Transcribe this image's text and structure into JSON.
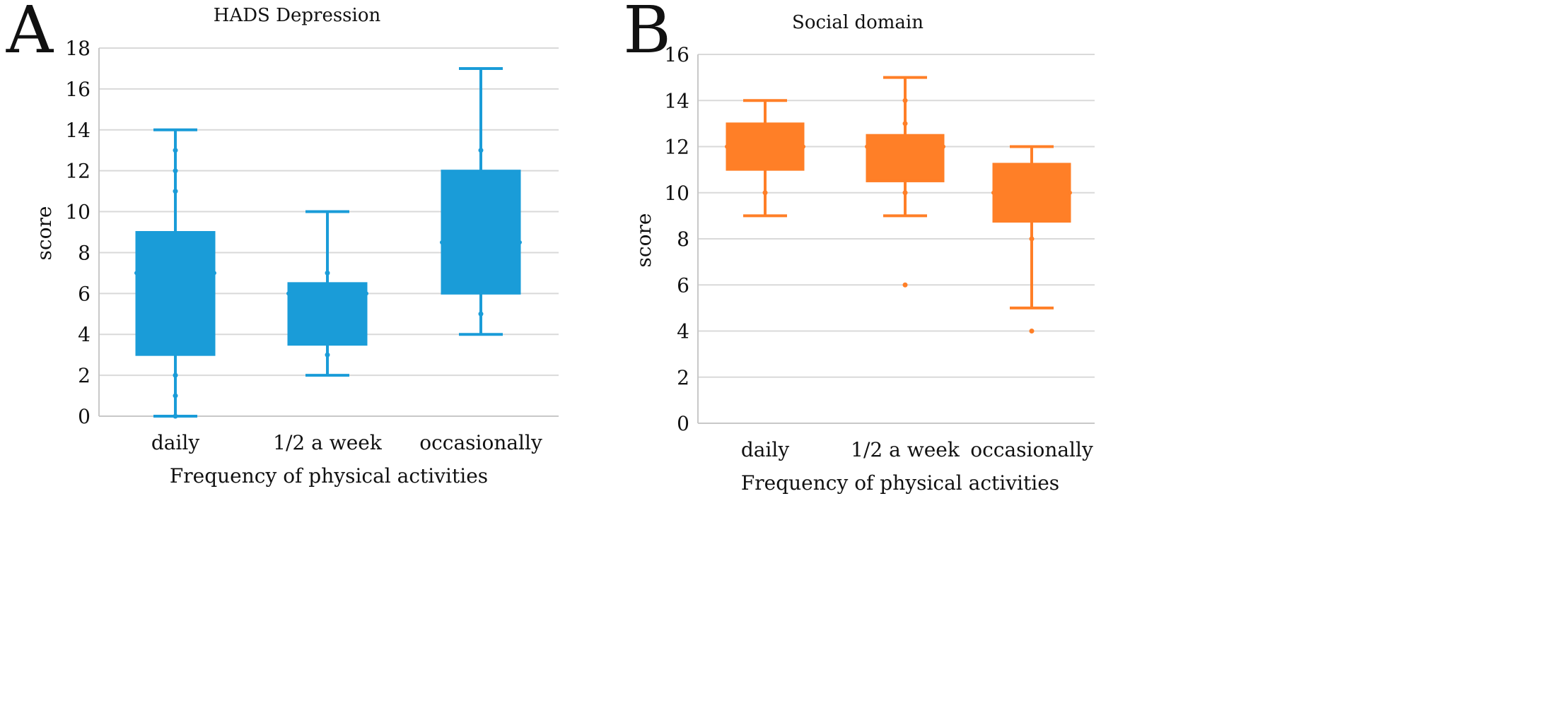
{
  "chart_data": [
    {
      "panel_label": "A",
      "type": "box",
      "title": "HADS Depression",
      "xlabel": "Frequency of physical activities",
      "ylabel": "score",
      "ylim": [
        0,
        18
      ],
      "yticks": [
        0,
        2,
        4,
        6,
        8,
        10,
        12,
        14,
        16,
        18
      ],
      "grid": true,
      "color": "#1a9cd8",
      "categories": [
        "daily",
        "1/2 a week",
        "occasionally"
      ],
      "boxes": [
        {
          "min": 0,
          "q1": 3,
          "median": 7,
          "q3": 9,
          "max": 14,
          "points": [
            0,
            1,
            2,
            11,
            12,
            13
          ],
          "outliers": []
        },
        {
          "min": 2,
          "q1": 3.5,
          "median": 6,
          "q3": 6.5,
          "max": 10,
          "points": [
            3,
            7
          ],
          "outliers": []
        },
        {
          "min": 4,
          "q1": 6,
          "median": 8.5,
          "q3": 12,
          "max": 17,
          "points": [
            5,
            13
          ],
          "outliers": []
        }
      ]
    },
    {
      "panel_label": "B",
      "type": "box",
      "title": "Social domain",
      "xlabel": "Frequency of physical activities",
      "ylabel": "score",
      "ylim": [
        0,
        16
      ],
      "yticks": [
        0,
        2,
        4,
        6,
        8,
        10,
        12,
        14,
        16
      ],
      "grid": true,
      "color": "#ff7f27",
      "categories": [
        "daily",
        "1/2 a week",
        "occasionally"
      ],
      "boxes": [
        {
          "min": 9,
          "q1": 11,
          "median": 12,
          "q3": 13,
          "max": 14,
          "points": [
            10
          ],
          "outliers": []
        },
        {
          "min": 9,
          "q1": 10.5,
          "median": 12,
          "q3": 12.5,
          "max": 15,
          "points": [
            10,
            13,
            14
          ],
          "outliers": [
            6
          ]
        },
        {
          "min": 5,
          "q1": 8.75,
          "median": 10,
          "q3": 11.25,
          "max": 12,
          "points": [
            8
          ],
          "outliers": [
            4
          ]
        }
      ]
    }
  ]
}
